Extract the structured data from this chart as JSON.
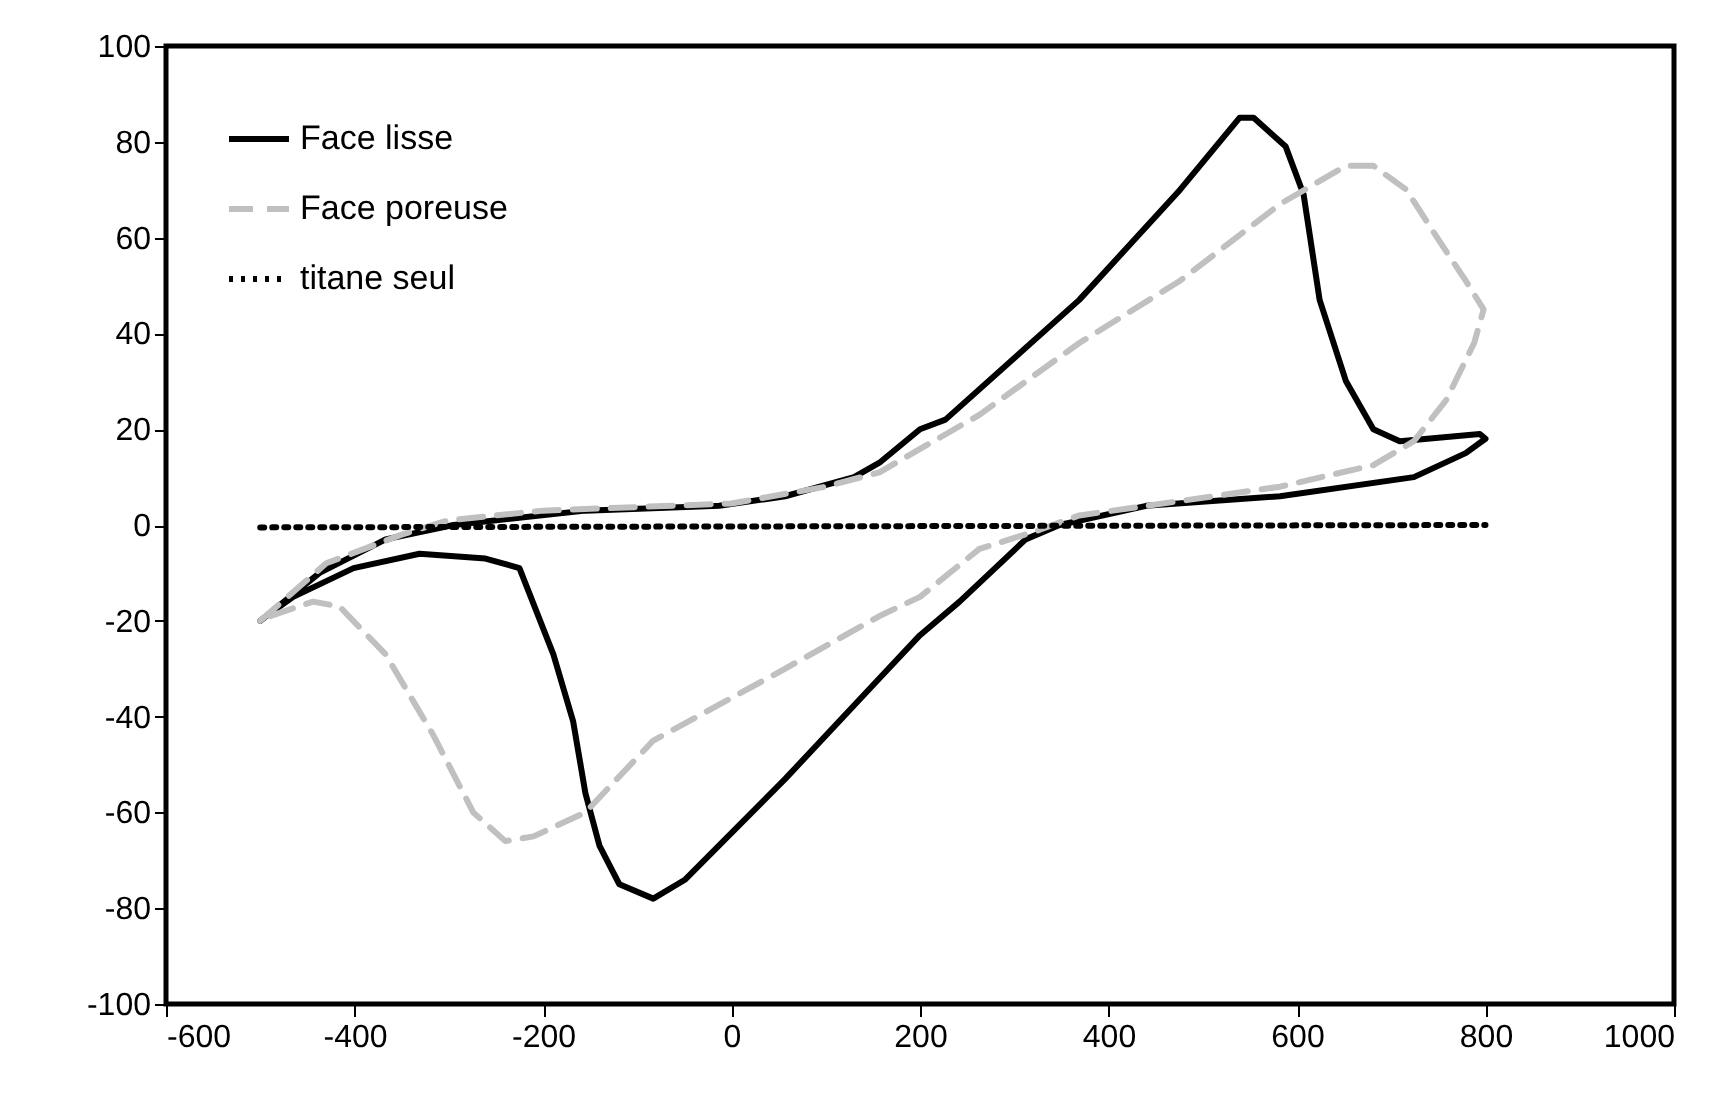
{
  "chart_data": {
    "type": "line",
    "xlim": [
      -600,
      1000
    ],
    "ylim": [
      -100,
      100
    ],
    "xticks": [
      -600,
      -400,
      -200,
      0,
      200,
      400,
      600,
      800,
      1000
    ],
    "yticks": [
      -100,
      -80,
      -60,
      -40,
      -20,
      0,
      20,
      40,
      60,
      80,
      100
    ],
    "grid": false,
    "legend": "top left",
    "series": [
      {
        "name": "Face lisse",
        "color": "#000000",
        "line_style": "solid",
        "x": [
          -500,
          -437,
          -367,
          -295,
          -155,
          -13,
          57,
          130,
          157,
          200,
          227,
          369,
          476,
          539,
          554,
          588,
          607,
          624,
          652,
          681,
          709,
          794,
          800,
          779,
          724,
          582,
          440,
          348,
          312,
          242,
          200,
          157,
          57,
          -49,
          -83,
          -119,
          -140,
          -155,
          -168,
          -189,
          -225,
          -261,
          -331,
          -401,
          -465,
          -497
        ],
        "values": [
          -20,
          -10,
          -3,
          0,
          3,
          4,
          6,
          10,
          13,
          20,
          22,
          47,
          70,
          85,
          85,
          79,
          69,
          47,
          30,
          20,
          17.5,
          19,
          18,
          15,
          10,
          6,
          4,
          0,
          -3,
          -16,
          -23,
          -32,
          -53,
          -74,
          -78,
          -75,
          -67,
          -56,
          -41,
          -27,
          -9,
          -7,
          -6,
          -9,
          -15,
          -19.5
        ]
      },
      {
        "name": "Face poreuse",
        "color": "#c0c0c0",
        "line_style": "dashed",
        "x": [
          -500,
          -430,
          -350,
          -300,
          -200,
          0,
          100,
          157,
          263,
          369,
          476,
          582,
          652,
          681,
          716,
          752,
          779,
          798,
          788,
          758,
          724,
          681,
          582,
          476,
          369,
          327,
          263,
          200,
          157,
          57,
          -83,
          -155,
          -210,
          -240,
          -274,
          -316,
          -367,
          -416,
          -444,
          -497
        ],
        "values": [
          -20,
          -8,
          -2,
          1,
          3,
          4.5,
          8,
          11,
          23,
          38,
          51,
          67,
          75,
          75,
          70,
          59,
          51,
          45,
          38,
          26,
          17.5,
          12.5,
          8,
          5,
          2,
          -1,
          -5,
          -15,
          -19,
          -30,
          -45,
          -60,
          -65,
          -66,
          -60,
          -44,
          -27,
          -17,
          -16,
          -19.5
        ]
      },
      {
        "name": "titane seul",
        "color": "#000000",
        "line_style": "dotted",
        "x": [
          -500,
          800
        ],
        "values": [
          -0.5,
          0
        ]
      }
    ]
  }
}
